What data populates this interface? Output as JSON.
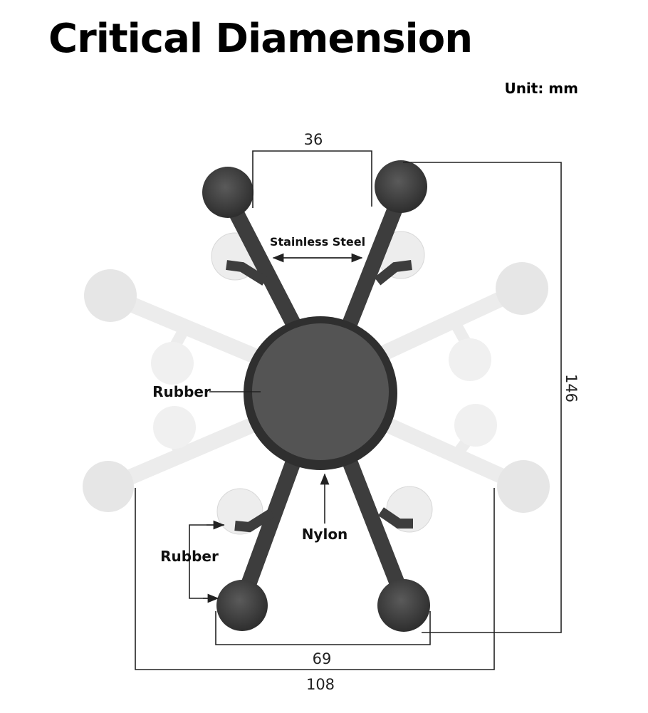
{
  "title": "Critical Diamension",
  "unit": "Unit: mm",
  "dimensions": {
    "top_ball_spacing": "36",
    "height": "146",
    "bottom_ball_spacing": "69",
    "width": "108"
  },
  "labels": {
    "arms": "Stainless Steel",
    "center_pad": "Rubber",
    "hub_ring": "Nylon",
    "ball_tips": "Rubber"
  },
  "colors": {
    "dark_part": "#3d3d3d",
    "faded_part": "#e8e8e8",
    "line": "#222222"
  }
}
